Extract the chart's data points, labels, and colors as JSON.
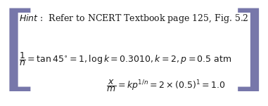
{
  "line1_italic": "Hint",
  "line1_rest": " :  Refer to NCERT Textbook page 125, Fig. 5.2",
  "line2": "\\frac{1}{n} = \\tan 45^{\\circ} = 1, \\log k = 0.3010, k = 2, p = 0.5 \\text{ atm}",
  "line3": "\\frac{x}{m} = kp^{1/n} = 2 \\times (0.5)^{1} = 1.0",
  "bg_color": "#ffffff",
  "text_color": "#1a1a1a",
  "bracket_color": "#7777aa",
  "fig_width": 3.81,
  "fig_height": 1.51,
  "dpi": 100
}
